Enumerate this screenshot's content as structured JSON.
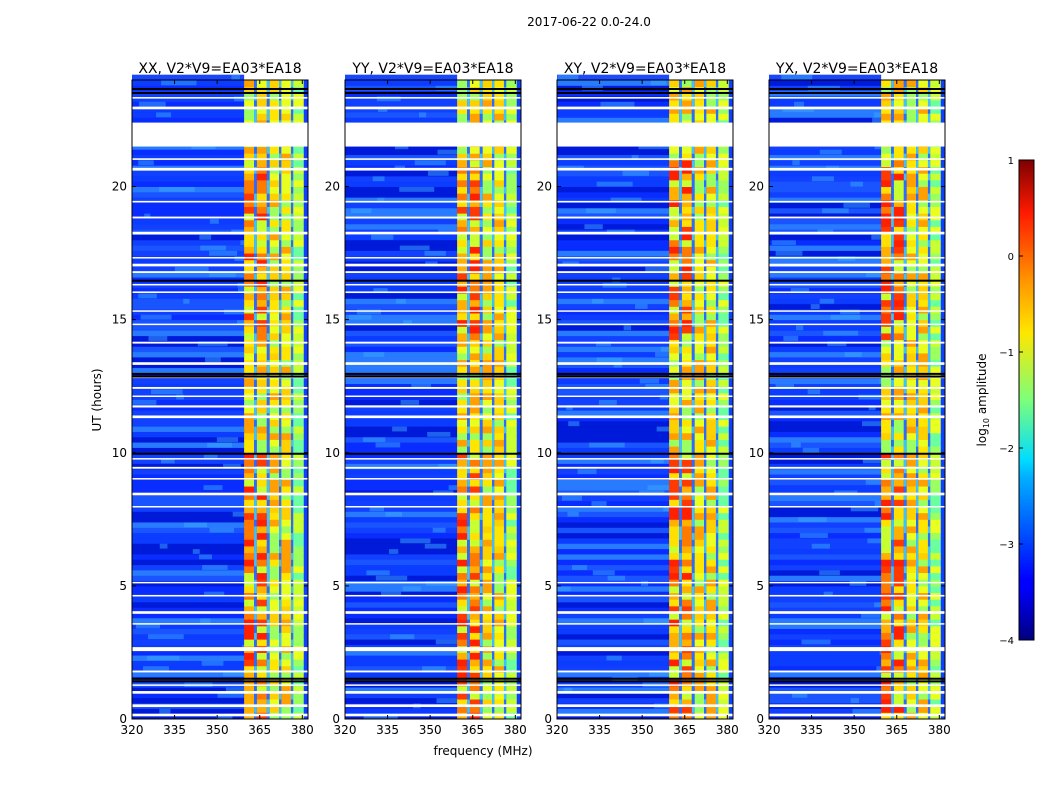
{
  "chart_data": {
    "type": "heatmap",
    "suptitle": "2017-06-22 0.0-24.0",
    "xlabel": "frequency (MHz)",
    "ylabel": "UT (hours)",
    "xlim": [
      320,
      382
    ],
    "ylim": [
      0,
      24
    ],
    "xticks": [
      320,
      335,
      350,
      365,
      380
    ],
    "yticks": [
      0,
      5,
      10,
      15,
      20
    ],
    "colormap": "jet",
    "colorbar": {
      "label": "log10 amplitude",
      "label_main": "log",
      "label_sub": "10",
      "label_rest": " amplitude",
      "range": [
        -4,
        1
      ],
      "ticks": [
        -4,
        -3,
        -2,
        -1,
        0,
        1
      ],
      "tick_labels": [
        "−4",
        "−3",
        "−2",
        "−1",
        "0",
        "1"
      ]
    },
    "panels": [
      {
        "title": "XX, V2*V9=EA03*EA18",
        "band_start_mhz": 359.5,
        "band_end_mhz": 380.5
      },
      {
        "title": "YY, V2*V9=EA03*EA18",
        "band_start_mhz": 359.5,
        "band_end_mhz": 380.5
      },
      {
        "title": "XY, V2*V9=EA03*EA18",
        "band_start_mhz": 359.5,
        "band_end_mhz": 380.5
      },
      {
        "title": "YX, V2*V9=EA03*EA18",
        "band_start_mhz": 359.5,
        "band_end_mhz": 380.5
      }
    ],
    "data_gap_hours": [
      21.5,
      22.4
    ],
    "grid": false
  }
}
